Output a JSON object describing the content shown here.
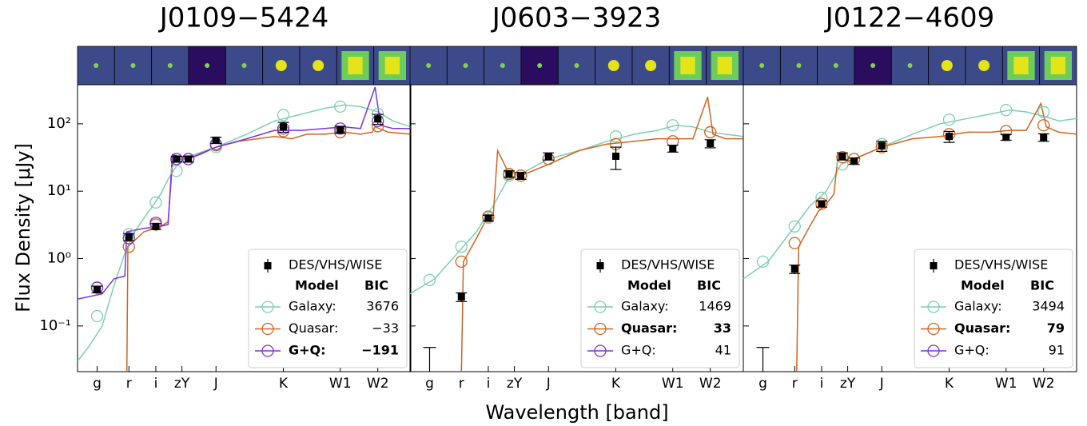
{
  "chart_data": [
    {
      "type": "sed",
      "title": "J0109−5424",
      "ylabel": "Flux Density [μJy]",
      "xscale": "log",
      "yscale": "log",
      "xlim": [
        0.41,
        6.0
      ],
      "ylim": [
        0.021,
        380
      ],
      "xticks": [
        {
          "value": 0.48,
          "label": "g"
        },
        {
          "value": 0.62,
          "label": "r"
        },
        {
          "value": 0.77,
          "label": "i"
        },
        {
          "value": 0.95,
          "label": "zY"
        },
        {
          "value": 1.25,
          "label": "J"
        },
        {
          "value": 2.15,
          "label": "K"
        },
        {
          "value": 3.4,
          "label": "W1"
        },
        {
          "value": 4.6,
          "label": "W2"
        }
      ],
      "yticks": [
        {
          "value": 0.1,
          "label": "10⁻¹"
        },
        {
          "value": 1,
          "label": "10⁰"
        },
        {
          "value": 10,
          "label": "10¹"
        },
        {
          "value": 100,
          "label": "10²"
        }
      ],
      "legend": "lower right",
      "legend_header": [
        "Model",
        "BIC"
      ],
      "photometry": {
        "name": "DES/VHS/WISE",
        "color": "#000000",
        "x": [
          0.48,
          0.62,
          0.77,
          0.91,
          1.0,
          1.25,
          2.15,
          3.4,
          4.6
        ],
        "values": [
          0.35,
          2.1,
          3.0,
          30,
          30,
          57,
          90,
          82,
          118
        ],
        "errors": [
          0.04,
          0.25,
          0.3,
          3,
          3,
          6,
          15,
          10,
          20
        ]
      },
      "models": [
        {
          "name": "Galaxy:",
          "color": "#7fcfb4",
          "bic": 3676,
          "best": false,
          "x": [
            0.41,
            0.45,
            0.5,
            0.55,
            0.6,
            0.65,
            0.7,
            0.75,
            0.8,
            0.85,
            0.9,
            0.95,
            1.05,
            1.25,
            1.6,
            2.0,
            2.5,
            3.0,
            3.5,
            4.0,
            4.6,
            5.2,
            6.0
          ],
          "values": [
            0.03,
            0.05,
            0.1,
            0.4,
            1.2,
            2.5,
            4,
            6,
            9,
            15,
            22,
            30,
            35,
            45,
            70,
            110,
            140,
            170,
            190,
            180,
            150,
            110,
            90
          ],
          "phot": [
            0.14,
            2.3,
            6.8,
            20,
            30,
            45,
            135,
            180,
            140
          ]
        },
        {
          "name": "Quasar:",
          "color": "#d2651e",
          "bic": -33,
          "bic_label": "−33",
          "best": false,
          "x": [
            0.61,
            0.615,
            0.7,
            0.8,
            0.85,
            0.88,
            0.92,
            1.0,
            1.1,
            1.25,
            1.5,
            2.0,
            2.3,
            2.6,
            3.0,
            3.5,
            4.0,
            4.4,
            4.5,
            5.0,
            6.0
          ],
          "values": [
            0.021,
            1.5,
            2.5,
            3,
            3.5,
            25,
            30,
            30,
            35,
            45,
            55,
            65,
            60,
            70,
            70,
            75,
            70,
            75,
            90,
            75,
            70
          ],
          "phot": [
            0.37,
            1.5,
            3.2,
            30,
            30,
            48,
            78,
            75,
            92
          ]
        },
        {
          "name": "G+Q:",
          "color": "#7a35e0",
          "bic": -191,
          "bic_label": "−191",
          "best": true,
          "x": [
            0.41,
            0.5,
            0.55,
            0.6,
            0.61,
            0.7,
            0.8,
            0.85,
            0.88,
            0.95,
            1.05,
            1.25,
            1.6,
            2.0,
            2.5,
            3.0,
            3.5,
            4.0,
            4.5,
            4.7,
            5.2,
            6.0
          ],
          "values": [
            0.25,
            0.3,
            0.5,
            0.55,
            2.5,
            2.8,
            3,
            3.2,
            35,
            32,
            33,
            45,
            60,
            80,
            80,
            85,
            90,
            85,
            350,
            95,
            85,
            85
          ],
          "phot": [
            0.37,
            2.0,
            3.4,
            30,
            30,
            50,
            85,
            85,
            110
          ]
        }
      ]
    },
    {
      "type": "sed",
      "title": "J0603−3923",
      "xlabel": "Wavelength [band]",
      "xscale": "log",
      "yscale": "log",
      "sharey": true,
      "xlim": [
        0.41,
        6.0
      ],
      "ylim": [
        0.021,
        380
      ],
      "xticks": [
        {
          "value": 0.48,
          "label": "g"
        },
        {
          "value": 0.62,
          "label": "r"
        },
        {
          "value": 0.77,
          "label": "i"
        },
        {
          "value": 0.95,
          "label": "zY"
        },
        {
          "value": 1.25,
          "label": "J"
        },
        {
          "value": 2.15,
          "label": "K"
        },
        {
          "value": 3.4,
          "label": "W1"
        },
        {
          "value": 4.6,
          "label": "W2"
        }
      ],
      "legend": "lower right",
      "legend_header": [
        "Model",
        "BIC"
      ],
      "photometry": {
        "name": "DES/VHS/WISE",
        "color": "#000000",
        "x": [
          0.48,
          0.62,
          0.77,
          0.91,
          1.0,
          1.25,
          2.15,
          3.4,
          4.6
        ],
        "values": [
          null,
          0.27,
          4.0,
          18,
          17,
          33,
          33,
          43,
          51
        ],
        "errors": [
          null,
          0.04,
          0.4,
          2,
          2,
          4,
          12,
          5,
          7
        ],
        "upper_limit": {
          "x": 0.48,
          "value": 0.048
        }
      },
      "models": [
        {
          "name": "Galaxy:",
          "color": "#7fcfb4",
          "bic": 1469,
          "best": false,
          "x": [
            0.41,
            0.5,
            0.6,
            0.7,
            0.75,
            0.8,
            0.9,
            1.0,
            1.25,
            1.6,
            2.0,
            2.5,
            3.0,
            3.5,
            4.0,
            4.6,
            5.2,
            6.0
          ],
          "values": [
            0.3,
            0.5,
            1.2,
            2.5,
            4,
            6,
            15,
            18,
            30,
            40,
            55,
            70,
            80,
            95,
            90,
            75,
            70,
            65
          ],
          "phot": [
            0.48,
            1.5,
            4.0,
            17,
            17,
            30,
            65,
            95,
            75
          ]
        },
        {
          "name": "Quasar:",
          "color": "#d2651e",
          "bic": 33,
          "best": true,
          "x": [
            0.62,
            0.63,
            0.7,
            0.75,
            0.8,
            0.83,
            0.9,
            1.0,
            1.25,
            1.6,
            2.0,
            2.5,
            3.0,
            3.5,
            4.0,
            4.5,
            4.7,
            5.2,
            6.0
          ],
          "values": [
            0.021,
            0.9,
            2,
            3.5,
            4,
            40,
            20,
            17,
            25,
            40,
            50,
            55,
            60,
            60,
            60,
            250,
            70,
            60,
            60
          ],
          "phot": [
            null,
            0.9,
            4.2,
            18,
            17,
            30,
            50,
            55,
            75
          ]
        },
        {
          "name": "G+Q:",
          "color": "#7a35e0",
          "bic": 41,
          "best": false
        }
      ]
    },
    {
      "type": "sed",
      "title": "J0122−4609",
      "xscale": "log",
      "yscale": "log",
      "sharey": true,
      "xlim": [
        0.41,
        6.0
      ],
      "ylim": [
        0.021,
        380
      ],
      "xticks": [
        {
          "value": 0.48,
          "label": "g"
        },
        {
          "value": 0.62,
          "label": "r"
        },
        {
          "value": 0.77,
          "label": "i"
        },
        {
          "value": 0.95,
          "label": "zY"
        },
        {
          "value": 1.25,
          "label": "J"
        },
        {
          "value": 2.15,
          "label": "K"
        },
        {
          "value": 3.4,
          "label": "W1"
        },
        {
          "value": 4.6,
          "label": "W2"
        }
      ],
      "legend": "lower right",
      "legend_header": [
        "Model",
        "BIC"
      ],
      "photometry": {
        "name": "DES/VHS/WISE",
        "color": "#000000",
        "x": [
          0.48,
          0.62,
          0.77,
          0.91,
          1.0,
          1.25,
          2.15,
          3.4,
          4.6
        ],
        "values": [
          null,
          0.7,
          6.5,
          33,
          28,
          47,
          65,
          63,
          63
        ],
        "errors": [
          null,
          0.1,
          0.7,
          4,
          3,
          8,
          12,
          6,
          8
        ],
        "upper_limit": {
          "x": 0.48,
          "value": 0.048
        }
      },
      "models": [
        {
          "name": "Galaxy:",
          "color": "#7fcfb4",
          "bic": 3494,
          "best": false,
          "x": [
            0.41,
            0.5,
            0.6,
            0.7,
            0.8,
            0.9,
            1.0,
            1.25,
            1.6,
            2.0,
            2.5,
            3.0,
            3.5,
            4.0,
            4.6,
            5.2,
            6.0
          ],
          "values": [
            0.5,
            0.9,
            2.5,
            6,
            10,
            25,
            30,
            45,
            70,
            100,
            120,
            140,
            160,
            150,
            130,
            110,
            120
          ],
          "phot": [
            0.9,
            3.0,
            8,
            25,
            30,
            50,
            115,
            160,
            150
          ]
        },
        {
          "name": "Quasar:",
          "color": "#d2651e",
          "bic": 79,
          "best": true,
          "x": [
            0.63,
            0.64,
            0.7,
            0.75,
            0.8,
            0.85,
            0.88,
            0.95,
            1.0,
            1.25,
            1.6,
            2.0,
            2.5,
            3.0,
            3.5,
            4.0,
            4.5,
            4.7,
            5.2,
            6.0
          ],
          "values": [
            0.021,
            1.5,
            3,
            5,
            6.5,
            9,
            35,
            28,
            30,
            45,
            60,
            65,
            75,
            75,
            80,
            80,
            200,
            90,
            75,
            70
          ],
          "phot": [
            null,
            1.7,
            6.5,
            32,
            30,
            45,
            70,
            78,
            95
          ]
        },
        {
          "name": "G+Q:",
          "color": "#7a35e0",
          "bic": 91,
          "best": false
        }
      ]
    }
  ]
}
